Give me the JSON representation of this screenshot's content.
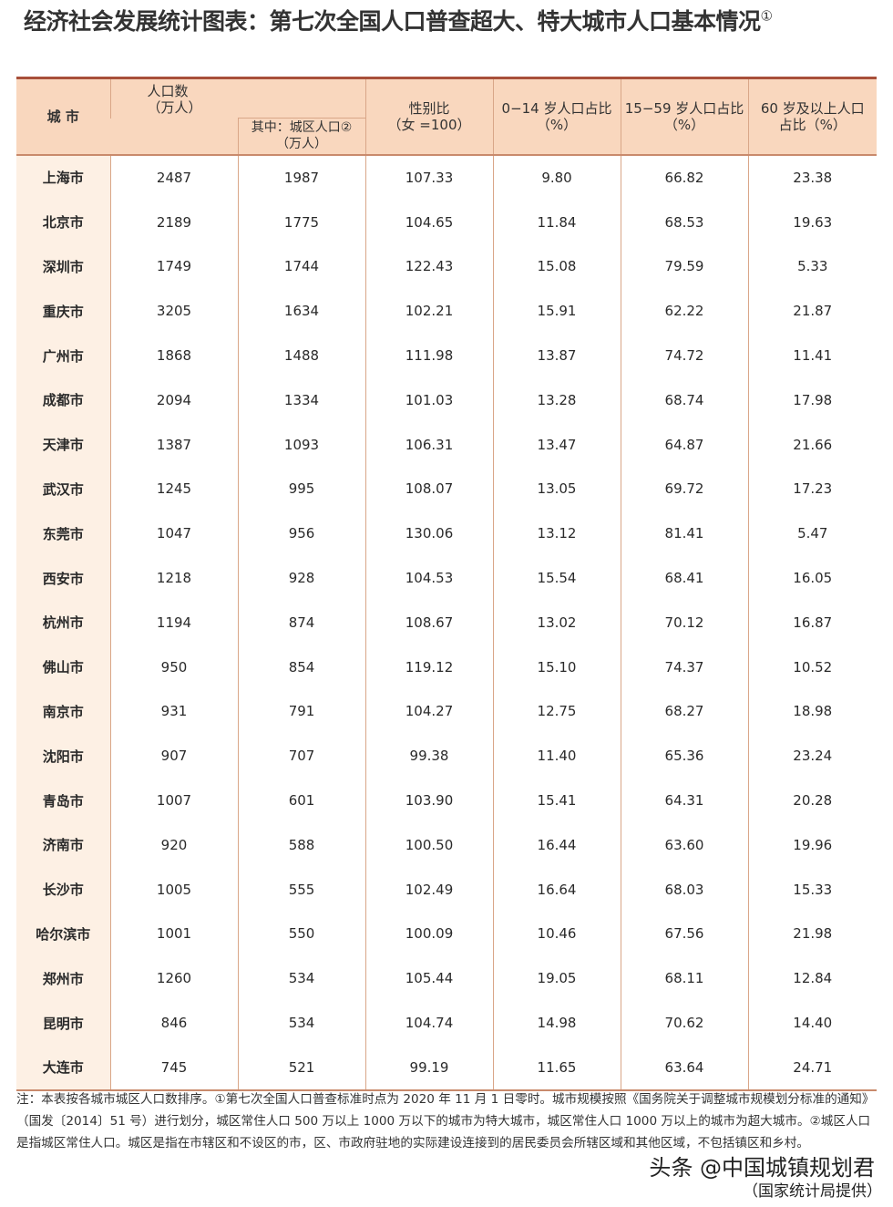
{
  "title": "经济社会发展统计图表：第七次全国人口普查超大、特大城市人口基本情况",
  "title_mark": "①",
  "headers": {
    "city": "城 市",
    "population": "人口数\n（万人）",
    "urban": "其中：城区人口②\n（万人）",
    "sex_ratio": "性别比\n（女 =100）",
    "age_0_14": "0−14 岁人口占比\n（%）",
    "age_15_59": "15−59 岁人口占比\n（%）",
    "age_60": "60 岁及以上人口\n占比（%）"
  },
  "rows": [
    [
      "上海市",
      "2487",
      "1987",
      "107.33",
      "9.80",
      "66.82",
      "23.38"
    ],
    [
      "北京市",
      "2189",
      "1775",
      "104.65",
      "11.84",
      "68.53",
      "19.63"
    ],
    [
      "深圳市",
      "1749",
      "1744",
      "122.43",
      "15.08",
      "79.59",
      "5.33"
    ],
    [
      "重庆市",
      "3205",
      "1634",
      "102.21",
      "15.91",
      "62.22",
      "21.87"
    ],
    [
      "广州市",
      "1868",
      "1488",
      "111.98",
      "13.87",
      "74.72",
      "11.41"
    ],
    [
      "成都市",
      "2094",
      "1334",
      "101.03",
      "13.28",
      "68.74",
      "17.98"
    ],
    [
      "天津市",
      "1387",
      "1093",
      "106.31",
      "13.47",
      "64.87",
      "21.66"
    ],
    [
      "武汉市",
      "1245",
      "995",
      "108.07",
      "13.05",
      "69.72",
      "17.23"
    ],
    [
      "东莞市",
      "1047",
      "956",
      "130.06",
      "13.12",
      "81.41",
      "5.47"
    ],
    [
      "西安市",
      "1218",
      "928",
      "104.53",
      "15.54",
      "68.41",
      "16.05"
    ],
    [
      "杭州市",
      "1194",
      "874",
      "108.67",
      "13.02",
      "70.12",
      "16.87"
    ],
    [
      "佛山市",
      "950",
      "854",
      "119.12",
      "15.10",
      "74.37",
      "10.52"
    ],
    [
      "南京市",
      "931",
      "791",
      "104.27",
      "12.75",
      "68.27",
      "18.98"
    ],
    [
      "沈阳市",
      "907",
      "707",
      "99.38",
      "11.40",
      "65.36",
      "23.24"
    ],
    [
      "青岛市",
      "1007",
      "601",
      "103.90",
      "15.41",
      "64.31",
      "20.28"
    ],
    [
      "济南市",
      "920",
      "588",
      "100.50",
      "16.44",
      "63.60",
      "19.96"
    ],
    [
      "长沙市",
      "1005",
      "555",
      "102.49",
      "16.64",
      "68.03",
      "15.33"
    ],
    [
      "哈尔滨市",
      "1001",
      "550",
      "100.09",
      "10.46",
      "67.56",
      "21.98"
    ],
    [
      "郑州市",
      "1260",
      "534",
      "105.44",
      "19.05",
      "68.11",
      "12.84"
    ],
    [
      "昆明市",
      "846",
      "534",
      "104.74",
      "14.98",
      "70.62",
      "14.40"
    ],
    [
      "大连市",
      "745",
      "521",
      "99.19",
      "11.65",
      "63.64",
      "24.71"
    ]
  ],
  "note": "注：本表按各城市城区人口数排序。①第七次全国人口普查标准时点为 2020 年 11 月 1 日零时。城市规模按照《国务院关于调整城市规模划分标准的通知》（国发〔2014〕51 号）进行划分，城区常住人口 500 万以上 1000 万以下的城市为特大城市，城区常住人口 1000 万以上的城市为超大城市。②城区人口是指城区常住人口。城区是指在市辖区和不设区的市，区、市政府驻地的实际建设连接到的居民委员会所辖区域和其他区域，不包括镇区和乡村。",
  "watermark": "头条 @中国城镇规划君",
  "source": "（国家统计局提供）",
  "colors": {
    "header_bg": "#f9d7be",
    "first_col_bg": "#fdf0e4",
    "rule": "#a8503a"
  }
}
